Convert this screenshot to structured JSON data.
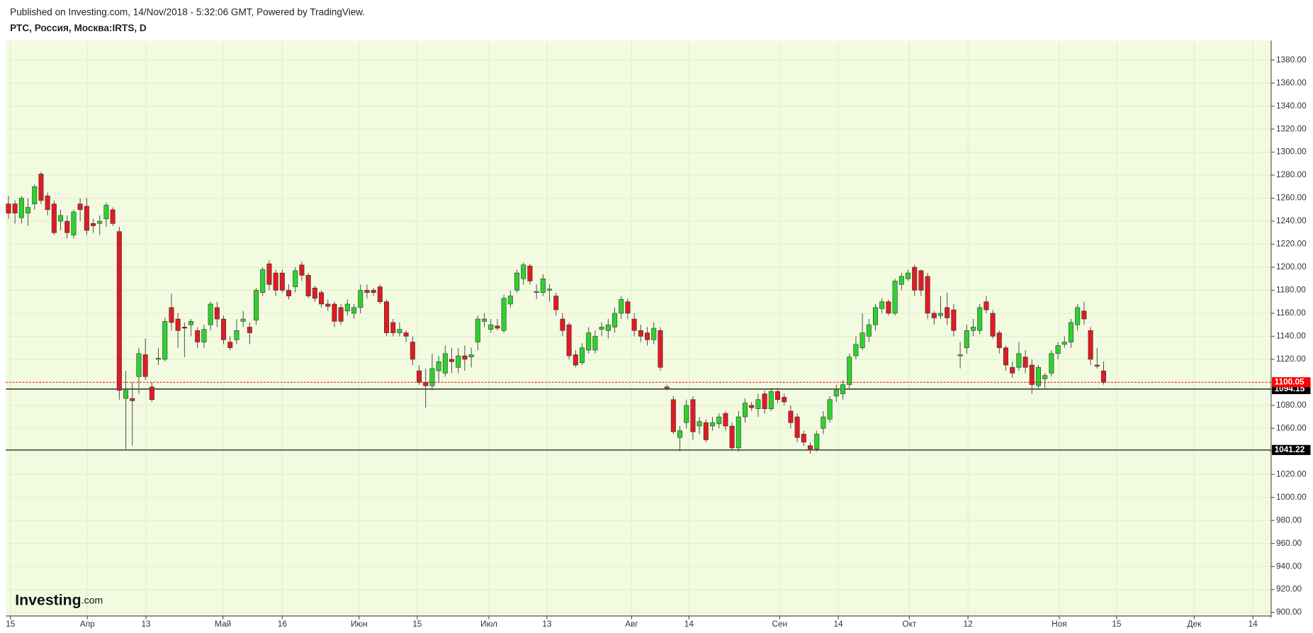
{
  "chart_data": {
    "type": "candlestick",
    "published": "Published on Investing.com, 14/Nov/2018 - 5:32:06 GMT, Powered by TradingView.",
    "title": "РТС, Россия, Москва:IRTS, D",
    "logo": {
      "brand": "Investing",
      "suffix": ".com"
    },
    "up_color": "#2fd12f",
    "down_color": "#e01b22",
    "grid": true,
    "background": "#f2fbe0",
    "open": [
      1255,
      1255,
      1243,
      1247,
      1255,
      1281,
      1262,
      1255,
      1240,
      1240,
      1228,
      1255,
      1253,
      1238,
      1238,
      1242,
      1250,
      1231,
      1086,
      1086,
      1105,
      1124,
      1096,
      1120,
      1120,
      1165,
      1155,
      1148,
      1150,
      1145,
      1135,
      1150,
      1165,
      1155,
      1135,
      1137,
      1153,
      1148,
      1154,
      1178,
      1203,
      1195,
      1195,
      1180,
      1183,
      1202,
      1193,
      1182,
      1178,
      1168,
      1168,
      1165,
      1162,
      1160,
      1165,
      1180,
      1180,
      1183,
      1170,
      1152,
      1143,
      1143,
      1135,
      1110,
      1100,
      1097,
      1110,
      1108,
      1120,
      1113,
      1123,
      1122,
      1135,
      1153,
      1146,
      1149,
      1145,
      1168,
      1180,
      1190,
      1201,
      1178,
      1178,
      1180,
      1175,
      1155,
      1150,
      1124,
      1117,
      1128,
      1128,
      1146,
      1145,
      1148,
      1160,
      1170,
      1155,
      1145,
      1143,
      1137,
      1145,
      1096,
      1085,
      1052,
      1065,
      1085,
      1062,
      1065,
      1062,
      1064,
      1073,
      1062,
      1043,
      1070,
      1080,
      1077,
      1090,
      1077,
      1092,
      1087,
      1075,
      1070,
      1055,
      1045,
      1042,
      1060,
      1068,
      1088,
      1090,
      1098,
      1123,
      1130,
      1140,
      1150,
      1164,
      1170,
      1160,
      1185,
      1190,
      1200,
      1197,
      1192,
      1160,
      1158,
      1165,
      1163,
      1123,
      1130,
      1145,
      1145,
      1170,
      1160,
      1143,
      1130,
      1113,
      1113,
      1122,
      1115,
      1097,
      1103,
      1108,
      1125,
      1133,
      1135,
      1150,
      1162,
      1145,
      1115,
      1110
    ],
    "high": [
      1262,
      1258,
      1262,
      1260,
      1272,
      1283,
      1265,
      1258,
      1250,
      1245,
      1250,
      1260,
      1260,
      1242,
      1245,
      1256,
      1252,
      1235,
      1110,
      1100,
      1130,
      1138,
      1100,
      1130,
      1156,
      1177,
      1160,
      1152,
      1155,
      1148,
      1150,
      1170,
      1170,
      1158,
      1140,
      1155,
      1162,
      1152,
      1182,
      1200,
      1206,
      1198,
      1198,
      1185,
      1200,
      1205,
      1195,
      1184,
      1180,
      1172,
      1170,
      1168,
      1172,
      1168,
      1185,
      1185,
      1182,
      1185,
      1172,
      1155,
      1152,
      1145,
      1140,
      1115,
      1112,
      1125,
      1123,
      1132,
      1130,
      1130,
      1132,
      1130,
      1158,
      1160,
      1155,
      1155,
      1176,
      1180,
      1198,
      1204,
      1203,
      1185,
      1194,
      1185,
      1178,
      1160,
      1152,
      1128,
      1134,
      1148,
      1145,
      1152,
      1155,
      1165,
      1175,
      1173,
      1160,
      1150,
      1148,
      1152,
      1148,
      1098,
      1088,
      1062,
      1085,
      1088,
      1070,
      1068,
      1070,
      1073,
      1075,
      1065,
      1075,
      1086,
      1083,
      1090,
      1093,
      1095,
      1095,
      1090,
      1080,
      1073,
      1058,
      1048,
      1058,
      1075,
      1088,
      1098,
      1102,
      1125,
      1140,
      1160,
      1155,
      1168,
      1173,
      1172,
      1190,
      1195,
      1198,
      1202,
      1198,
      1195,
      1162,
      1175,
      1178,
      1168,
      1135,
      1150,
      1155,
      1168,
      1175,
      1163,
      1145,
      1132,
      1118,
      1135,
      1128,
      1120,
      1115,
      1108,
      1128,
      1135,
      1140,
      1155,
      1168,
      1170,
      1148,
      1130,
      1118
    ],
    "low": [
      1242,
      1238,
      1238,
      1236,
      1250,
      1255,
      1245,
      1228,
      1232,
      1225,
      1225,
      1240,
      1228,
      1230,
      1228,
      1235,
      1236,
      1085,
      1042,
      1045,
      1090,
      1102,
      1083,
      1115,
      1118,
      1145,
      1130,
      1122,
      1140,
      1130,
      1130,
      1145,
      1148,
      1133,
      1128,
      1133,
      1148,
      1133,
      1150,
      1175,
      1180,
      1175,
      1178,
      1172,
      1178,
      1188,
      1173,
      1170,
      1165,
      1162,
      1148,
      1150,
      1158,
      1155,
      1160,
      1173,
      1175,
      1168,
      1140,
      1140,
      1140,
      1135,
      1115,
      1098,
      1078,
      1093,
      1100,
      1105,
      1108,
      1108,
      1110,
      1113,
      1128,
      1148,
      1143,
      1145,
      1143,
      1165,
      1178,
      1185,
      1185,
      1172,
      1175,
      1170,
      1158,
      1140,
      1120,
      1113,
      1115,
      1125,
      1125,
      1140,
      1138,
      1143,
      1155,
      1155,
      1140,
      1135,
      1132,
      1133,
      1110,
      1093,
      1055,
      1040,
      1060,
      1050,
      1055,
      1048,
      1058,
      1060,
      1058,
      1041,
      1040,
      1065,
      1075,
      1070,
      1073,
      1075,
      1082,
      1080,
      1060,
      1048,
      1045,
      1038,
      1040,
      1055,
      1065,
      1083,
      1085,
      1095,
      1120,
      1128,
      1135,
      1145,
      1160,
      1158,
      1158,
      1180,
      1188,
      1175,
      1175,
      1155,
      1150,
      1155,
      1150,
      1140,
      1112,
      1125,
      1140,
      1142,
      1160,
      1138,
      1125,
      1110,
      1104,
      1110,
      1108,
      1090,
      1095,
      1095,
      1105,
      1120,
      1130,
      1130,
      1145,
      1150,
      1115,
      1112,
      1098
    ],
    "close": [
      1247,
      1247,
      1260,
      1252,
      1270,
      1258,
      1250,
      1230,
      1245,
      1230,
      1248,
      1250,
      1232,
      1236,
      1240,
      1254,
      1238,
      1093,
      1093,
      1084,
      1125,
      1105,
      1085,
      1121,
      1153,
      1152,
      1145,
      1147,
      1153,
      1135,
      1146,
      1168,
      1155,
      1137,
      1130,
      1145,
      1155,
      1143,
      1180,
      1198,
      1185,
      1180,
      1180,
      1175,
      1197,
      1193,
      1175,
      1173,
      1168,
      1166,
      1153,
      1153,
      1168,
      1165,
      1180,
      1178,
      1178,
      1170,
      1143,
      1143,
      1146,
      1140,
      1120,
      1100,
      1097,
      1112,
      1118,
      1125,
      1118,
      1123,
      1120,
      1124,
      1155,
      1155,
      1150,
      1147,
      1173,
      1175,
      1195,
      1202,
      1188,
      1179,
      1190,
      1181,
      1163,
      1145,
      1123,
      1115,
      1130,
      1143,
      1140,
      1148,
      1150,
      1160,
      1172,
      1160,
      1145,
      1140,
      1137,
      1147,
      1113,
      1095,
      1057,
      1058,
      1080,
      1057,
      1066,
      1050,
      1065,
      1070,
      1062,
      1043,
      1070,
      1082,
      1078,
      1085,
      1077,
      1092,
      1085,
      1083,
      1065,
      1052,
      1048,
      1041,
      1055,
      1070,
      1085,
      1093,
      1098,
      1122,
      1133,
      1143,
      1150,
      1165,
      1170,
      1160,
      1188,
      1192,
      1195,
      1180,
      1180,
      1160,
      1156,
      1160,
      1156,
      1145,
      1124,
      1145,
      1148,
      1165,
      1163,
      1140,
      1130,
      1115,
      1108,
      1125,
      1113,
      1098,
      1113,
      1106,
      1125,
      1132,
      1135,
      1152,
      1165,
      1155,
      1120,
      1114,
      1100.05
    ],
    "xlim": [
      -0.4,
      193.7
    ],
    "xticks": [
      {
        "value": 0.3,
        "label": "15"
      },
      {
        "value": 12.1,
        "label": "Апр"
      },
      {
        "value": 21.1,
        "label": "13"
      },
      {
        "value": 32.9,
        "label": "Май"
      },
      {
        "value": 42.0,
        "label": "16"
      },
      {
        "value": 53.8,
        "label": "Июн"
      },
      {
        "value": 62.7,
        "label": "15"
      },
      {
        "value": 73.7,
        "label": "Июл"
      },
      {
        "value": 82.6,
        "label": "13"
      },
      {
        "value": 95.6,
        "label": "Авг"
      },
      {
        "value": 104.4,
        "label": "14"
      },
      {
        "value": 118.3,
        "label": "Сен"
      },
      {
        "value": 127.3,
        "label": "14"
      },
      {
        "value": 138.2,
        "label": "Окт"
      },
      {
        "value": 147.2,
        "label": "12"
      },
      {
        "value": 161.2,
        "label": "Ноя"
      },
      {
        "value": 170.0,
        "label": "15"
      },
      {
        "value": 181.9,
        "label": "Дек"
      },
      {
        "value": 190.9,
        "label": "14"
      }
    ],
    "ylim": [
      897,
      1397
    ],
    "yticks": [
      {
        "value": 900,
        "label": "900.00"
      },
      {
        "value": 920,
        "label": "920.00"
      },
      {
        "value": 940,
        "label": "940.00"
      },
      {
        "value": 960,
        "label": "960.00"
      },
      {
        "value": 980,
        "label": "980.00"
      },
      {
        "value": 1000,
        "label": "1000.00"
      },
      {
        "value": 1020,
        "label": "1020.00"
      },
      {
        "value": 1040,
        "label": "1040.00"
      },
      {
        "value": 1060,
        "label": "1060.00"
      },
      {
        "value": 1080,
        "label": "1080.00"
      },
      {
        "value": 1100,
        "label": "1100.00"
      },
      {
        "value": 1120,
        "label": "1120.00"
      },
      {
        "value": 1140,
        "label": "1140.00"
      },
      {
        "value": 1160,
        "label": "1160.00"
      },
      {
        "value": 1180,
        "label": "1180.00"
      },
      {
        "value": 1200,
        "label": "1200.00"
      },
      {
        "value": 1220,
        "label": "1220.00"
      },
      {
        "value": 1240,
        "label": "1240.00"
      },
      {
        "value": 1260,
        "label": "1260.00"
      },
      {
        "value": 1280,
        "label": "1280.00"
      },
      {
        "value": 1300,
        "label": "1300.00"
      },
      {
        "value": 1320,
        "label": "1320.00"
      },
      {
        "value": 1340,
        "label": "1340.00"
      },
      {
        "value": 1360,
        "label": "1360.00"
      },
      {
        "value": 1380,
        "label": "1380.00"
      }
    ],
    "levels": [
      {
        "value": 1094.15,
        "label": "1094.15",
        "color": "#000000"
      },
      {
        "value": 1041.22,
        "label": "1041.22",
        "color": "#000000"
      }
    ],
    "last_price": {
      "value": 1100.05,
      "label": "1100.05",
      "color": "#ff0000"
    }
  }
}
